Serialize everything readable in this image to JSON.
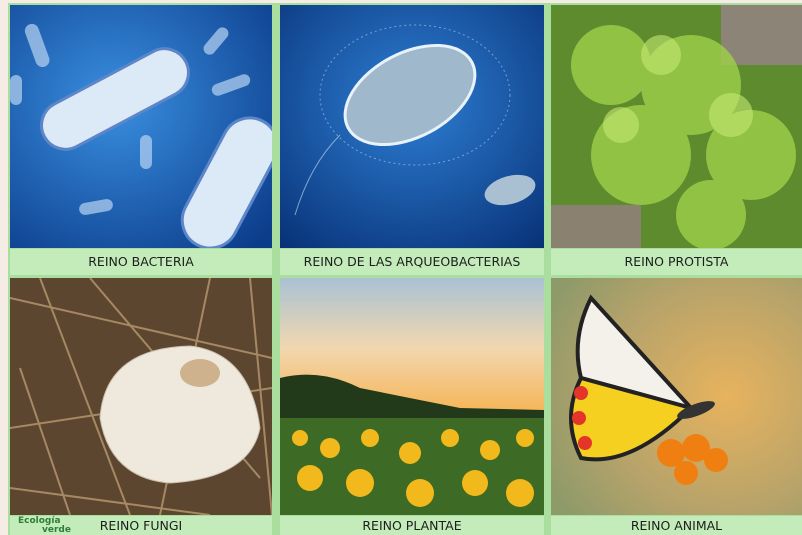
{
  "panels": [
    {
      "label": "REINO BACTERIA"
    },
    {
      "label": "REINO DE LAS ARQUEOBACTERIAS"
    },
    {
      "label": "REINO PROTISTA"
    },
    {
      "label": "REINO FUNGI"
    },
    {
      "label": "REINO PLANTAE"
    },
    {
      "label": "REINO ANIMAL"
    }
  ],
  "logo": {
    "text": "Ecología",
    "subtext": "verde"
  }
}
